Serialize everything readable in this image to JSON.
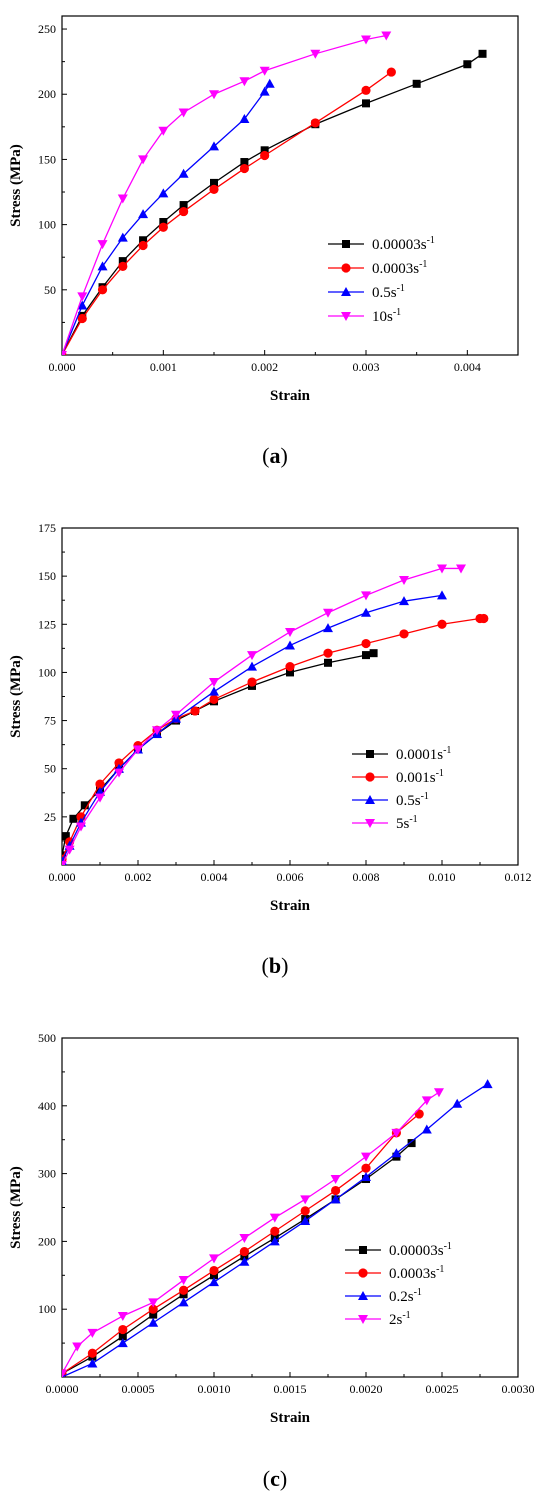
{
  "chart_data": [
    {
      "panel_label": "a",
      "type": "line",
      "xlabel": "Strain",
      "ylabel": "Stress (MPa)",
      "xlim": [
        0,
        0.0045
      ],
      "ylim": [
        0,
        260
      ],
      "xticks": [
        0,
        0.001,
        0.002,
        0.003,
        0.004
      ],
      "xtick_labels": [
        "0.000",
        "0.001",
        "0.002",
        "0.003",
        "0.004"
      ],
      "yticks": [
        50,
        100,
        150,
        200,
        250
      ],
      "ytick_labels": [
        "50",
        "100",
        "150",
        "200",
        "250"
      ],
      "grid": false,
      "legend_position": "right",
      "series": [
        {
          "name": "0.00003s⁻¹",
          "base": "0.00003s",
          "sup": "-1",
          "color": "#000000",
          "marker": "square",
          "x": [
            0,
            0.0002,
            0.0004,
            0.0006,
            0.0008,
            0.001,
            0.0012,
            0.0015,
            0.0018,
            0.002,
            0.0025,
            0.003,
            0.0035,
            0.004,
            0.00415
          ],
          "y": [
            0,
            30,
            52,
            72,
            88,
            102,
            115,
            132,
            148,
            157,
            177,
            193,
            208,
            223,
            231
          ]
        },
        {
          "name": "0.0003s⁻¹",
          "base": "0.0003s",
          "sup": "-1",
          "color": "#ff0000",
          "marker": "circle",
          "x": [
            0,
            0.0002,
            0.0004,
            0.0006,
            0.0008,
            0.001,
            0.0012,
            0.0015,
            0.0018,
            0.002,
            0.0025,
            0.003,
            0.00325
          ],
          "y": [
            0,
            28,
            50,
            68,
            84,
            98,
            110,
            127,
            143,
            153,
            178,
            203,
            217
          ]
        },
        {
          "name": "0.5s⁻¹",
          "base": "0.5s",
          "sup": "-1",
          "color": "#0000ff",
          "marker": "triangle-up",
          "x": [
            0,
            0.0002,
            0.0004,
            0.0006,
            0.0008,
            0.001,
            0.0012,
            0.0015,
            0.0018,
            0.002,
            0.00205
          ],
          "y": [
            0,
            38,
            68,
            90,
            108,
            124,
            139,
            160,
            181,
            202,
            208
          ]
        },
        {
          "name": "10s⁻¹",
          "base": "10s",
          "sup": "-1",
          "color": "#ff00ff",
          "marker": "triangle-down",
          "x": [
            0,
            0.0002,
            0.0004,
            0.0006,
            0.0008,
            0.001,
            0.0012,
            0.0015,
            0.0018,
            0.002,
            0.0025,
            0.003,
            0.0032
          ],
          "y": [
            0,
            45,
            85,
            120,
            150,
            172,
            186,
            200,
            210,
            218,
            231,
            242,
            245
          ]
        }
      ]
    },
    {
      "panel_label": "b",
      "type": "line",
      "xlabel": "Strain",
      "ylabel": "Stress (MPa)",
      "xlim": [
        0,
        0.012
      ],
      "ylim": [
        0,
        175
      ],
      "xticks": [
        0,
        0.002,
        0.004,
        0.006,
        0.008,
        0.01,
        0.012
      ],
      "xtick_labels": [
        "0.000",
        "0.002",
        "0.004",
        "0.006",
        "0.008",
        "0.010",
        "0.012"
      ],
      "yticks": [
        25,
        50,
        75,
        100,
        125,
        150,
        175
      ],
      "ytick_labels": [
        "25",
        "50",
        "75",
        "100",
        "125",
        "150",
        "175"
      ],
      "grid": false,
      "legend_position": "right",
      "series": [
        {
          "name": "0.0001s⁻¹",
          "base": "0.0001s",
          "sup": "-1",
          "color": "#000000",
          "marker": "square",
          "x": [
            0,
            0.0001,
            0.0003,
            0.0006,
            0.001,
            0.0015,
            0.002,
            0.0025,
            0.003,
            0.0035,
            0.004,
            0.005,
            0.006,
            0.007,
            0.008,
            0.0082
          ],
          "y": [
            5,
            15,
            24,
            31,
            39,
            50,
            60,
            68,
            75,
            80,
            85,
            93,
            100,
            105,
            109,
            110
          ]
        },
        {
          "name": "0.001s⁻¹",
          "base": "0.001s",
          "sup": "-1",
          "color": "#ff0000",
          "marker": "circle",
          "x": [
            0,
            0.0002,
            0.0005,
            0.001,
            0.0015,
            0.002,
            0.0025,
            0.003,
            0.0035,
            0.004,
            0.005,
            0.006,
            0.007,
            0.008,
            0.009,
            0.01,
            0.011,
            0.0111
          ],
          "y": [
            3,
            12,
            25,
            42,
            53,
            62,
            70,
            76,
            80,
            86,
            95,
            103,
            110,
            115,
            120,
            125,
            128,
            128
          ]
        },
        {
          "name": "0.5s⁻¹",
          "base": "0.5s",
          "sup": "-1",
          "color": "#0000ff",
          "marker": "triangle-up",
          "x": [
            0,
            0.0002,
            0.0005,
            0.001,
            0.0015,
            0.002,
            0.0025,
            0.003,
            0.004,
            0.005,
            0.006,
            0.007,
            0.008,
            0.009,
            0.01
          ],
          "y": [
            2,
            10,
            22,
            38,
            50,
            60,
            68,
            76,
            90,
            103,
            114,
            123,
            131,
            137,
            140
          ]
        },
        {
          "name": "5s⁻¹",
          "base": "5s",
          "sup": "-1",
          "color": "#ff00ff",
          "marker": "triangle-down",
          "x": [
            0,
            0.0002,
            0.0005,
            0.001,
            0.0015,
            0.002,
            0.0025,
            0.003,
            0.004,
            0.005,
            0.006,
            0.007,
            0.008,
            0.009,
            0.01,
            0.0105
          ],
          "y": [
            0,
            8,
            20,
            35,
            48,
            60,
            70,
            78,
            95,
            109,
            121,
            131,
            140,
            148,
            154,
            154
          ]
        }
      ]
    },
    {
      "panel_label": "c",
      "type": "line",
      "xlabel": "Strain",
      "ylabel": "Stress (MPa)",
      "xlim": [
        0,
        0.003
      ],
      "ylim": [
        0,
        500
      ],
      "xticks": [
        0,
        0.0005,
        0.001,
        0.0015,
        0.002,
        0.0025,
        0.003
      ],
      "xtick_labels": [
        "0.0000",
        "0.0005",
        "0.0010",
        "0.0015",
        "0.0020",
        "0.0025",
        "0.0030"
      ],
      "yticks": [
        100,
        200,
        300,
        400,
        500
      ],
      "ytick_labels": [
        "100",
        "200",
        "300",
        "400",
        "500"
      ],
      "grid": false,
      "legend_position": "right",
      "series": [
        {
          "name": "0.00003s⁻¹",
          "base": "0.00003s",
          "sup": "-1",
          "color": "#000000",
          "marker": "square",
          "x": [
            0,
            0.0002,
            0.0004,
            0.0006,
            0.0008,
            0.001,
            0.0012,
            0.0014,
            0.0016,
            0.0018,
            0.002,
            0.0022,
            0.0023
          ],
          "y": [
            5,
            30,
            60,
            92,
            122,
            150,
            178,
            205,
            233,
            262,
            292,
            325,
            345
          ]
        },
        {
          "name": "0.0003s⁻¹",
          "base": "0.0003s",
          "sup": "-1",
          "color": "#ff0000",
          "marker": "circle",
          "x": [
            0,
            0.0002,
            0.0004,
            0.0006,
            0.0008,
            0.001,
            0.0012,
            0.0014,
            0.0016,
            0.0018,
            0.002,
            0.0022,
            0.00235
          ],
          "y": [
            5,
            35,
            70,
            100,
            128,
            157,
            185,
            215,
            245,
            275,
            308,
            360,
            388
          ]
        },
        {
          "name": "0.2s⁻¹",
          "base": "0.2s",
          "sup": "-1",
          "color": "#0000ff",
          "marker": "triangle-up",
          "x": [
            0,
            0.0002,
            0.0004,
            0.0006,
            0.0008,
            0.001,
            0.0012,
            0.0014,
            0.0016,
            0.0018,
            0.002,
            0.0022,
            0.0024,
            0.0026,
            0.0028
          ],
          "y": [
            0,
            20,
            50,
            80,
            110,
            140,
            170,
            200,
            230,
            262,
            295,
            330,
            365,
            403,
            432
          ]
        },
        {
          "name": "2s⁻¹",
          "base": "2s",
          "sup": "-1",
          "color": "#ff00ff",
          "marker": "triangle-down",
          "x": [
            0,
            0.0001,
            0.0002,
            0.0004,
            0.0006,
            0.0008,
            0.001,
            0.0012,
            0.0014,
            0.0016,
            0.0018,
            0.002,
            0.0022,
            0.0024,
            0.00248
          ],
          "y": [
            5,
            45,
            65,
            90,
            110,
            143,
            175,
            205,
            235,
            262,
            292,
            325,
            360,
            408,
            420
          ]
        }
      ]
    }
  ]
}
